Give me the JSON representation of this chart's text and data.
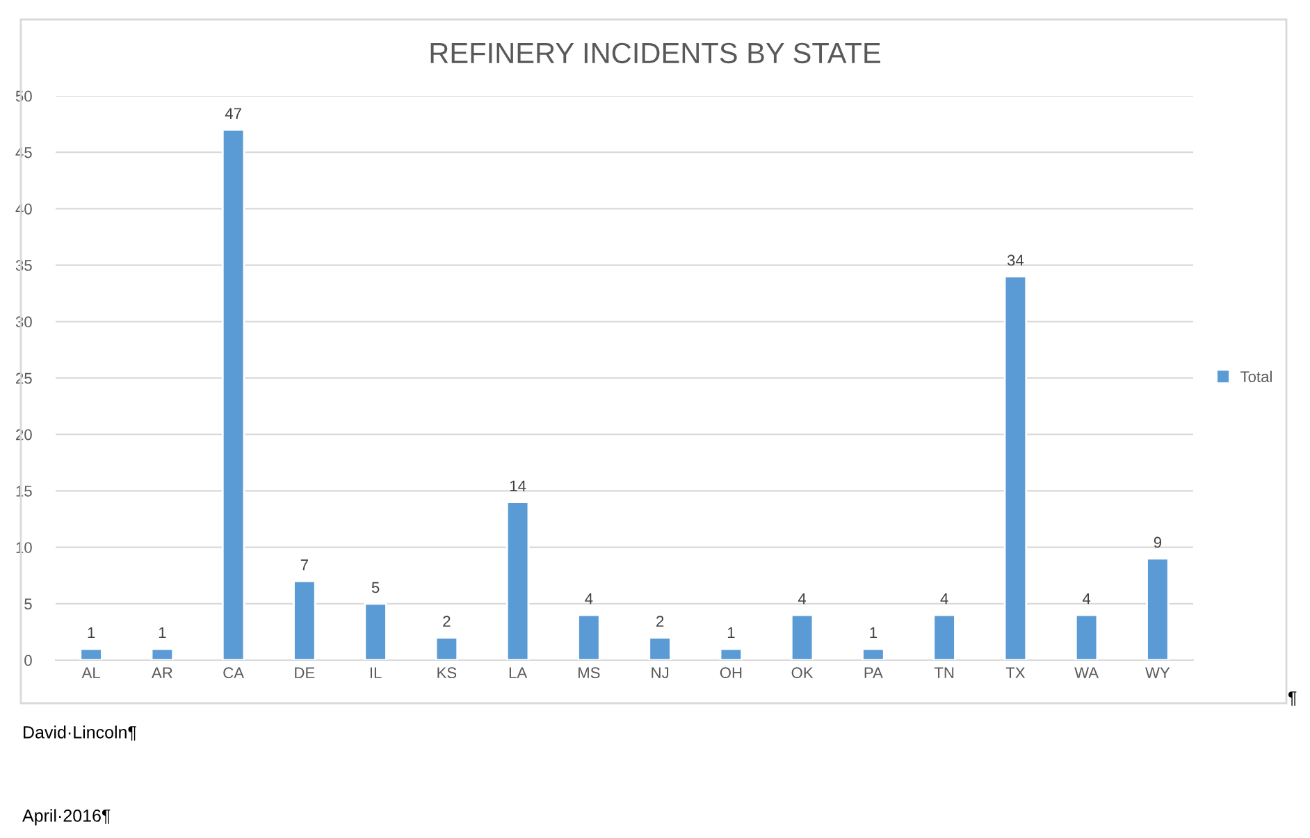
{
  "chart_data": {
    "type": "bar",
    "title": "REFINERY INCIDENTS BY STATE",
    "categories": [
      "AL",
      "AR",
      "CA",
      "DE",
      "IL",
      "KS",
      "LA",
      "MS",
      "NJ",
      "OH",
      "OK",
      "PA",
      "TN",
      "TX",
      "WA",
      "WY"
    ],
    "series": [
      {
        "name": "Total",
        "color": "#5b9bd5",
        "values": [
          1,
          1,
          47,
          7,
          5,
          2,
          14,
          4,
          2,
          1,
          4,
          1,
          4,
          34,
          4,
          9
        ]
      }
    ],
    "ylim": [
      0,
      50
    ],
    "yticks": [
      0,
      5,
      10,
      15,
      20,
      25,
      30,
      35,
      40,
      45,
      50
    ],
    "grid": "y",
    "legend": "right",
    "data_labels": true,
    "annotations": [
      "¶",
      "David·Lincoln¶",
      "April·2016¶"
    ]
  }
}
